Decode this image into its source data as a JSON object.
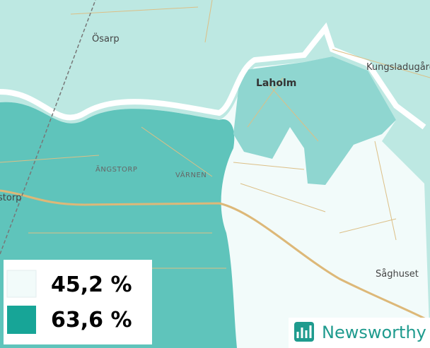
{
  "places": [
    "Ösarp",
    "Kungsladugård",
    "Laholm",
    "ÄNGSTORP",
    "VÄRNEN",
    "storp",
    "Såghuset"
  ],
  "legend": [
    "45,2 %",
    "63,6 %"
  ],
  "brand": "Newsworthy"
}
